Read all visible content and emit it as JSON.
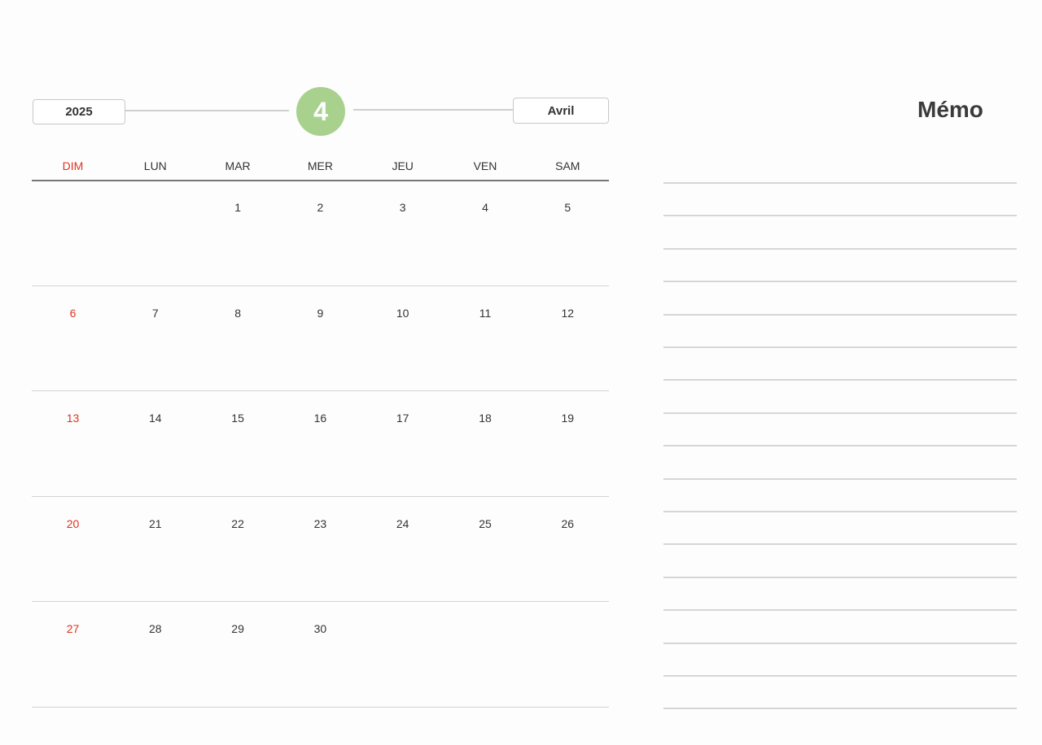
{
  "header": {
    "year": "2025",
    "month_number": "4",
    "month_name": "Avril"
  },
  "colors": {
    "accent": "#a9d18e",
    "sunday": "#e0321e"
  },
  "weekdays": [
    "DIM",
    "LUN",
    "MAR",
    "MER",
    "JEU",
    "VEN",
    "SAM"
  ],
  "weeks": [
    [
      "",
      "",
      "1",
      "2",
      "3",
      "4",
      "5"
    ],
    [
      "6",
      "7",
      "8",
      "9",
      "10",
      "11",
      "12"
    ],
    [
      "13",
      "14",
      "15",
      "16",
      "17",
      "18",
      "19"
    ],
    [
      "20",
      "21",
      "22",
      "23",
      "24",
      "25",
      "26"
    ],
    [
      "27",
      "28",
      "29",
      "30",
      "",
      "",
      ""
    ]
  ],
  "memo": {
    "title": "Mémo"
  }
}
